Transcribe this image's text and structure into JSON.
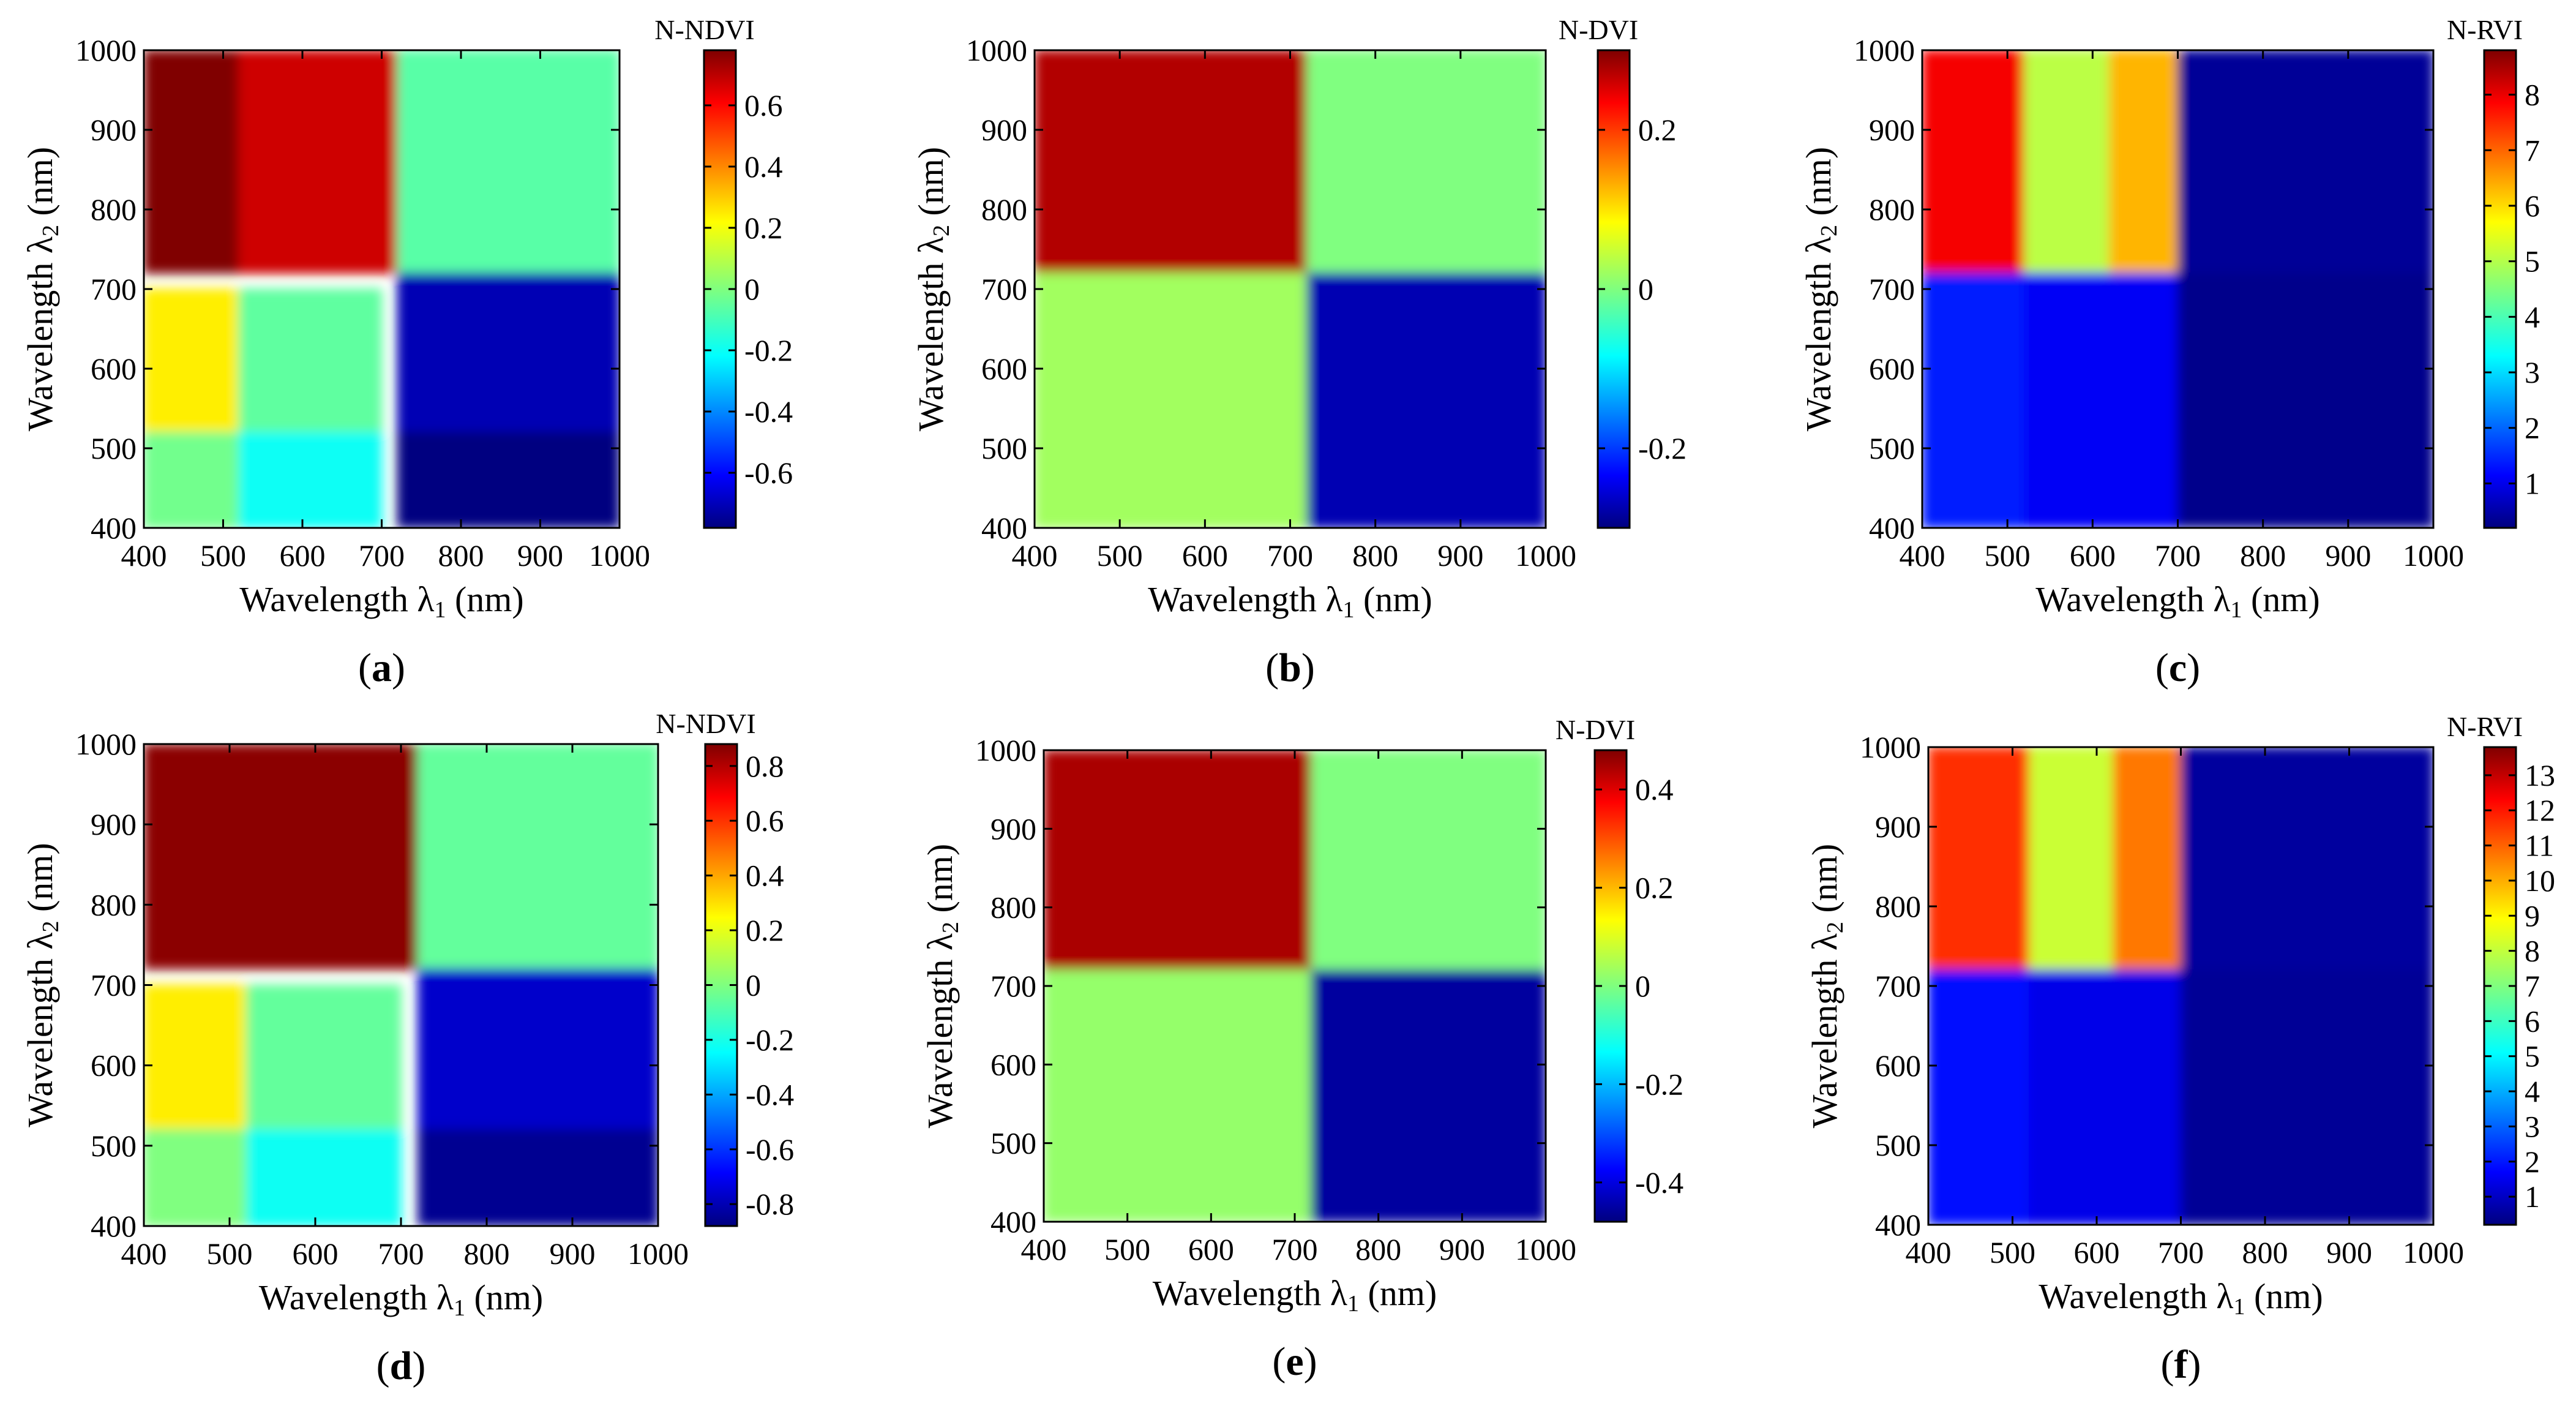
{
  "figure": {
    "description_labels": [
      "(a)",
      "(b)",
      "(c)",
      "(d)",
      "(e)",
      "(f)"
    ]
  },
  "chart_data": [
    {
      "type": "heatmap",
      "panel": "a",
      "index_name": "N-NDVI",
      "xlabel_main": "Wavelength λ",
      "xlabel_sub": "1",
      "xlabel_unit": " (nm)",
      "ylabel_main": "Wavelength λ",
      "ylabel_sub": "2",
      "ylabel_unit": " (nm)",
      "xlim": [
        400,
        1000
      ],
      "ylim": [
        400,
        1000
      ],
      "xticks": [
        "400",
        "500",
        "600",
        "700",
        "800",
        "900",
        "1000"
      ],
      "yticks": [
        "400",
        "500",
        "600",
        "700",
        "800",
        "900",
        "1000"
      ],
      "colorbar_label": "N-NDVI",
      "clim": [
        -0.78,
        0.78
      ],
      "colorbar_ticks": [
        -0.6,
        -0.4,
        -0.2,
        0,
        0.2,
        0.4,
        0.6
      ],
      "colorbar_tick_labels": [
        "-0.6",
        "-0.4",
        "-0.2",
        "0",
        "0.2",
        "0.4",
        "0.6"
      ],
      "colormap": "jet",
      "regions": [
        {
          "x": [
            400,
            520
          ],
          "y": [
            720,
            1000
          ],
          "value": 0.78
        },
        {
          "x": [
            520,
            720
          ],
          "y": [
            720,
            1000
          ],
          "value": 0.66
        },
        {
          "x": [
            720,
            1000
          ],
          "y": [
            720,
            1000
          ],
          "value": -0.06
        },
        {
          "x": [
            400,
            520
          ],
          "y": [
            520,
            700
          ],
          "value": 0.22
        },
        {
          "x": [
            520,
            700
          ],
          "y": [
            520,
            700
          ],
          "value": -0.05
        },
        {
          "x": [
            400,
            520
          ],
          "y": [
            400,
            520
          ],
          "value": -0.02
        },
        {
          "x": [
            520,
            700
          ],
          "y": [
            400,
            520
          ],
          "value": -0.18
        },
        {
          "x": [
            720,
            1000
          ],
          "y": [
            520,
            720
          ],
          "value": -0.7
        },
        {
          "x": [
            720,
            1000
          ],
          "y": [
            400,
            520
          ],
          "value": -0.78
        }
      ]
    },
    {
      "type": "heatmap",
      "panel": "b",
      "index_name": "N-DVI",
      "xlabel_main": "Wavelength λ",
      "xlabel_sub": "1",
      "xlabel_unit": " (nm)",
      "ylabel_main": "Wavelength λ",
      "ylabel_sub": "2",
      "ylabel_unit": " (nm)",
      "xlim": [
        400,
        1000
      ],
      "ylim": [
        400,
        1000
      ],
      "xticks": [
        "400",
        "500",
        "600",
        "700",
        "800",
        "900",
        "1000"
      ],
      "yticks": [
        "400",
        "500",
        "600",
        "700",
        "800",
        "900",
        "1000"
      ],
      "colorbar_label": "N-DVI",
      "clim": [
        -0.3,
        0.3
      ],
      "colorbar_ticks": [
        -0.2,
        0,
        0.2
      ],
      "colorbar_tick_labels": [
        "-0.2",
        "0",
        "0.2"
      ],
      "colormap": "jet",
      "regions": [
        {
          "x": [
            400,
            720
          ],
          "y": [
            720,
            1000
          ],
          "value": 0.27
        },
        {
          "x": [
            720,
            1000
          ],
          "y": [
            720,
            1000
          ],
          "value": 0.0
        },
        {
          "x": [
            400,
            720
          ],
          "y": [
            400,
            720
          ],
          "value": 0.02
        },
        {
          "x": [
            720,
            1000
          ],
          "y": [
            400,
            720
          ],
          "value": -0.27
        }
      ]
    },
    {
      "type": "heatmap",
      "panel": "c",
      "index_name": "N-RVI",
      "xlabel_main": "Wavelength λ",
      "xlabel_sub": "1",
      "xlabel_unit": " (nm)",
      "ylabel_main": "Wavelength λ",
      "ylabel_sub": "2",
      "ylabel_unit": " (nm)",
      "xlim": [
        400,
        1000
      ],
      "ylim": [
        400,
        1000
      ],
      "xticks": [
        "400",
        "500",
        "600",
        "700",
        "800",
        "900",
        "1000"
      ],
      "yticks": [
        "400",
        "500",
        "600",
        "700",
        "800",
        "900",
        "1000"
      ],
      "colorbar_label": "N-RVI",
      "clim": [
        0.2,
        8.8
      ],
      "colorbar_ticks": [
        1,
        2,
        3,
        4,
        5,
        6,
        7,
        8
      ],
      "colorbar_tick_labels": [
        "1",
        "2",
        "3",
        "4",
        "5",
        "6",
        "7",
        "8"
      ],
      "colormap": "jet",
      "regions": [
        {
          "x": [
            400,
            520
          ],
          "y": [
            720,
            1000
          ],
          "value": 7.8
        },
        {
          "x": [
            520,
            620
          ],
          "y": [
            720,
            1000
          ],
          "value": 5.0
        },
        {
          "x": [
            620,
            700
          ],
          "y": [
            720,
            1000
          ],
          "value": 6.2
        },
        {
          "x": [
            700,
            1000
          ],
          "y": [
            720,
            1000
          ],
          "value": 0.4
        },
        {
          "x": [
            400,
            520
          ],
          "y": [
            400,
            720
          ],
          "value": 1.5
        },
        {
          "x": [
            520,
            700
          ],
          "y": [
            400,
            720
          ],
          "value": 1.2
        },
        {
          "x": [
            700,
            1000
          ],
          "y": [
            400,
            720
          ],
          "value": 0.3
        }
      ]
    },
    {
      "type": "heatmap",
      "panel": "d",
      "index_name": "N-NDVI",
      "xlabel_main": "Wavelength λ",
      "xlabel_sub": "1",
      "xlabel_unit": " (nm)",
      "ylabel_main": "Wavelength λ",
      "ylabel_sub": "2",
      "ylabel_unit": " (nm)",
      "xlim": [
        400,
        1000
      ],
      "ylim": [
        400,
        1000
      ],
      "xticks": [
        "400",
        "500",
        "600",
        "700",
        "800",
        "900",
        "1000"
      ],
      "yticks": [
        "400",
        "500",
        "600",
        "700",
        "800",
        "900",
        "1000"
      ],
      "colorbar_label": "N-NDVI",
      "clim": [
        -0.88,
        0.88
      ],
      "colorbar_ticks": [
        -0.8,
        -0.6,
        -0.4,
        -0.2,
        0,
        0.2,
        0.4,
        0.6,
        0.8
      ],
      "colorbar_tick_labels": [
        "-0.8",
        "-0.6",
        "-0.4",
        "-0.2",
        "0",
        "0.2",
        "0.4",
        "0.6",
        "0.8"
      ],
      "colormap": "jet",
      "regions": [
        {
          "x": [
            400,
            720
          ],
          "y": [
            720,
            1000
          ],
          "value": 0.86
        },
        {
          "x": [
            720,
            1000
          ],
          "y": [
            720,
            1000
          ],
          "value": -0.05
        },
        {
          "x": [
            400,
            520
          ],
          "y": [
            520,
            700
          ],
          "value": 0.25
        },
        {
          "x": [
            520,
            700
          ],
          "y": [
            520,
            700
          ],
          "value": -0.05
        },
        {
          "x": [
            400,
            520
          ],
          "y": [
            400,
            520
          ],
          "value": 0.0
        },
        {
          "x": [
            520,
            700
          ],
          "y": [
            400,
            520
          ],
          "value": -0.2
        },
        {
          "x": [
            720,
            1000
          ],
          "y": [
            520,
            720
          ],
          "value": -0.75
        },
        {
          "x": [
            720,
            1000
          ],
          "y": [
            400,
            520
          ],
          "value": -0.85
        }
      ]
    },
    {
      "type": "heatmap",
      "panel": "e",
      "index_name": "N-DVI",
      "xlabel_main": "Wavelength λ",
      "xlabel_sub": "1",
      "xlabel_unit": " (nm)",
      "ylabel_main": "Wavelength λ",
      "ylabel_sub": "2",
      "ylabel_unit": " (nm)",
      "xlim": [
        400,
        1000
      ],
      "ylim": [
        400,
        1000
      ],
      "xticks": [
        "400",
        "500",
        "600",
        "700",
        "800",
        "900",
        "1000"
      ],
      "yticks": [
        "400",
        "500",
        "600",
        "700",
        "800",
        "900",
        "1000"
      ],
      "colorbar_label": "N-DVI",
      "clim": [
        -0.48,
        0.48
      ],
      "colorbar_ticks": [
        -0.4,
        -0.2,
        0,
        0.2,
        0.4
      ],
      "colorbar_tick_labels": [
        "-0.4",
        "-0.2",
        "0",
        "0.2",
        "0.4"
      ],
      "colormap": "jet",
      "regions": [
        {
          "x": [
            400,
            720
          ],
          "y": [
            720,
            1000
          ],
          "value": 0.44
        },
        {
          "x": [
            720,
            1000
          ],
          "y": [
            720,
            1000
          ],
          "value": 0.0
        },
        {
          "x": [
            400,
            720
          ],
          "y": [
            400,
            720
          ],
          "value": 0.02
        },
        {
          "x": [
            720,
            1000
          ],
          "y": [
            400,
            720
          ],
          "value": -0.45
        }
      ]
    },
    {
      "type": "heatmap",
      "panel": "f",
      "index_name": "N-RVI",
      "xlabel_main": "Wavelength λ",
      "xlabel_sub": "1",
      "xlabel_unit": " (nm)",
      "ylabel_main": "Wavelength λ",
      "ylabel_sub": "2",
      "ylabel_unit": " (nm)",
      "xlim": [
        400,
        1000
      ],
      "ylim": [
        400,
        1000
      ],
      "xticks": [
        "400",
        "500",
        "600",
        "700",
        "800",
        "900",
        "1000"
      ],
      "yticks": [
        "400",
        "500",
        "600",
        "700",
        "800",
        "900",
        "1000"
      ],
      "colorbar_label": "N-RVI",
      "clim": [
        0.2,
        13.8
      ],
      "colorbar_ticks": [
        1,
        2,
        3,
        4,
        5,
        6,
        7,
        8,
        9,
        10,
        11,
        12,
        13
      ],
      "colorbar_tick_labels": [
        "1",
        "2",
        "3",
        "4",
        "5",
        "6",
        "7",
        "8",
        "9",
        "10",
        "11",
        "12",
        "13"
      ],
      "colormap": "jet",
      "regions": [
        {
          "x": [
            400,
            520
          ],
          "y": [
            720,
            1000
          ],
          "value": 11.5
        },
        {
          "x": [
            520,
            620
          ],
          "y": [
            720,
            1000
          ],
          "value": 8.0
        },
        {
          "x": [
            620,
            700
          ],
          "y": [
            720,
            1000
          ],
          "value": 10.5
        },
        {
          "x": [
            700,
            1000
          ],
          "y": [
            720,
            1000
          ],
          "value": 0.6
        },
        {
          "x": [
            400,
            520
          ],
          "y": [
            400,
            720
          ],
          "value": 2.0
        },
        {
          "x": [
            520,
            700
          ],
          "y": [
            400,
            720
          ],
          "value": 1.6
        },
        {
          "x": [
            700,
            1000
          ],
          "y": [
            400,
            720
          ],
          "value": 0.5
        }
      ]
    }
  ]
}
